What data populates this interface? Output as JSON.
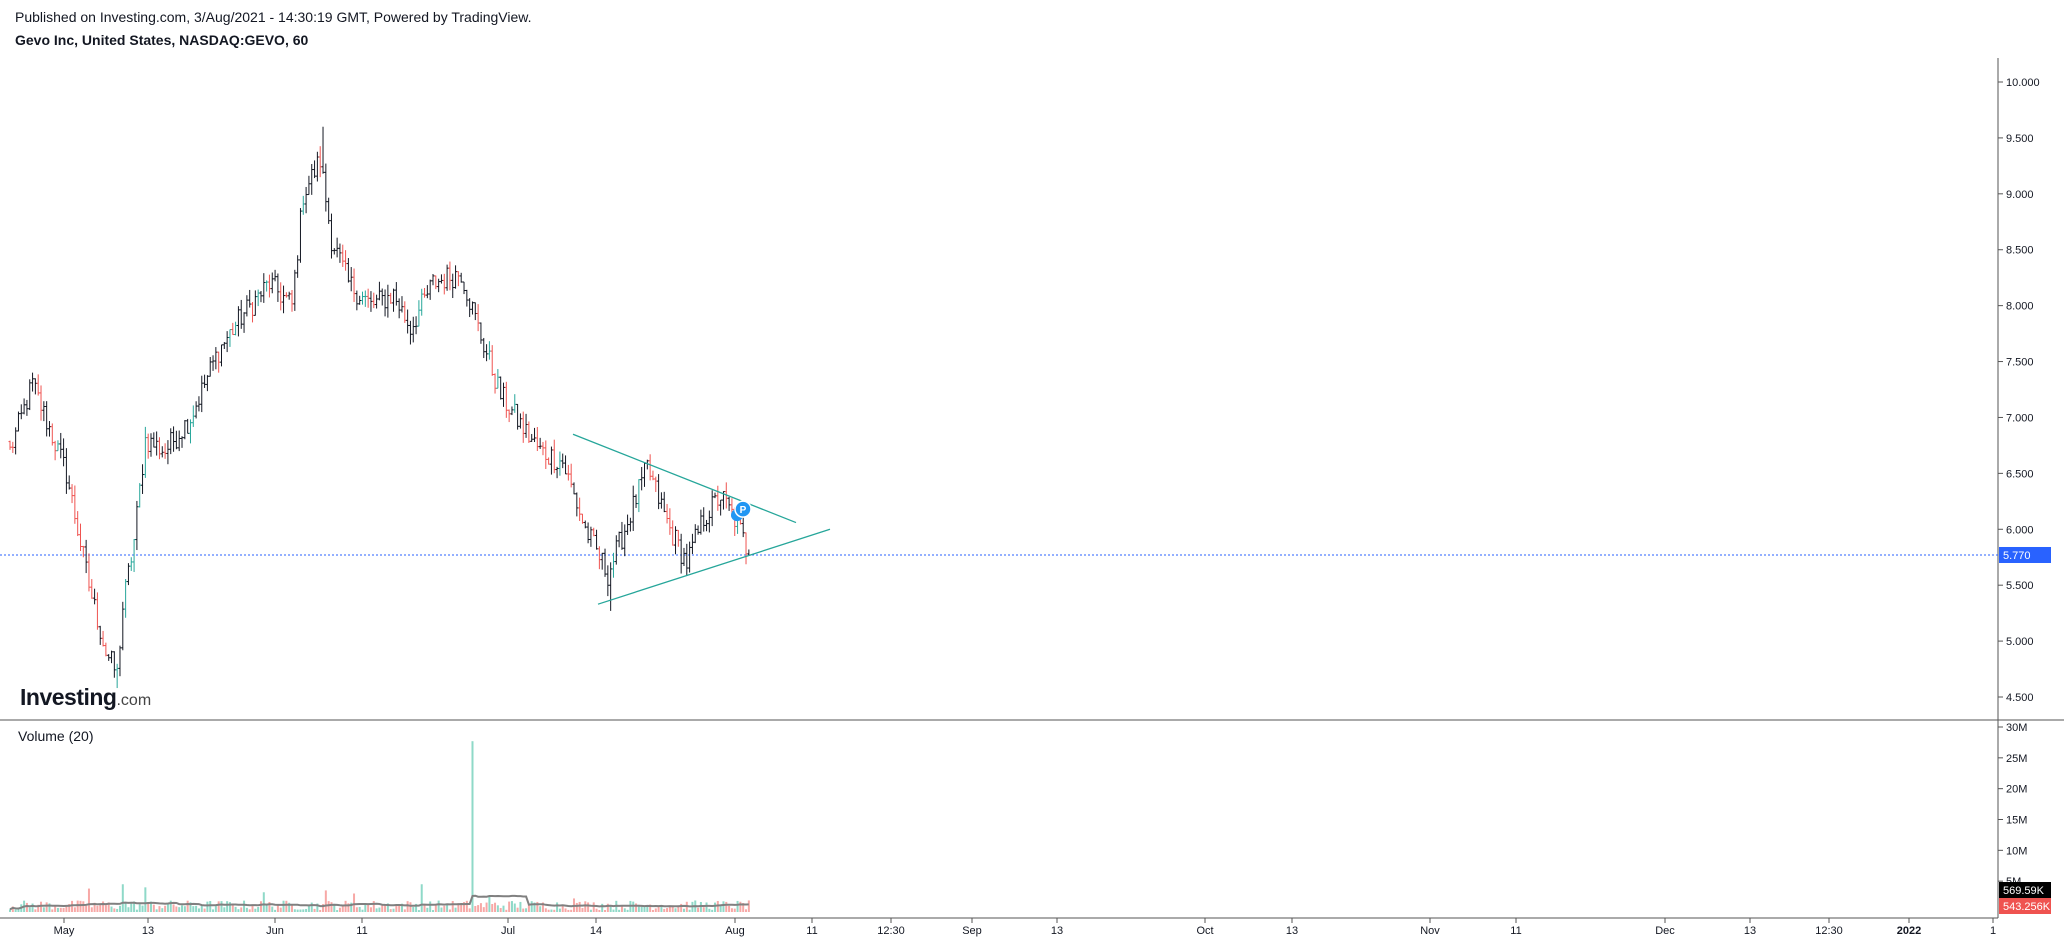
{
  "header": {
    "published": "Published on Investing.com, 3/Aug/2021 - 14:30:19 GMT, Powered by TradingView.",
    "title": "Gevo Inc, United States, NASDAQ:GEVO, 60"
  },
  "logo": {
    "brand": "Investing",
    "suffix": ".com"
  },
  "volume_label": "Volume (20)",
  "colors": {
    "up": "#26a69a",
    "down": "#ef5350",
    "bar_dark": "#131722",
    "trendline": "#26a69a",
    "last_price_tag": "#2962ff",
    "vol_tag_dark": "#000000",
    "vol_tag_red": "#ef5350",
    "ma": "#808080"
  },
  "chart_data": [
    {
      "type": "bar",
      "name": "price",
      "symbol": "NASDAQ:GEVO",
      "interval": "60",
      "ylim": [
        4.4,
        10.2
      ],
      "y_ticks": [
        "10.000",
        "9.500",
        "9.000",
        "8.500",
        "8.000",
        "7.500",
        "7.000",
        "6.500",
        "6.000",
        "5.500",
        "5.000",
        "4.500"
      ],
      "x_ticks": [
        "May",
        "13",
        "Jun",
        "11",
        "Jul",
        "14",
        "Aug",
        "11",
        "12:30",
        "Sep",
        "13",
        "Oct",
        "13",
        "Nov",
        "11",
        "Dec",
        "13",
        "12:30",
        "2022",
        "1"
      ],
      "last_price": "5.770",
      "anchors": [
        [
          0,
          6.7
        ],
        [
          8,
          7.3
        ],
        [
          20,
          6.5
        ],
        [
          28,
          5.5
        ],
        [
          34,
          4.9
        ],
        [
          38,
          4.7
        ],
        [
          40,
          5.3
        ],
        [
          44,
          5.9
        ],
        [
          48,
          6.8
        ],
        [
          55,
          6.7
        ],
        [
          64,
          7.0
        ],
        [
          74,
          7.6
        ],
        [
          82,
          7.9
        ],
        [
          92,
          8.2
        ],
        [
          100,
          8.0
        ],
        [
          104,
          9.0
        ],
        [
          110,
          9.3
        ],
        [
          114,
          8.6
        ],
        [
          120,
          8.2
        ],
        [
          128,
          8.0
        ],
        [
          136,
          8.1
        ],
        [
          142,
          7.8
        ],
        [
          150,
          8.2
        ],
        [
          160,
          8.3
        ],
        [
          166,
          7.8
        ],
        [
          174,
          7.2
        ],
        [
          182,
          6.9
        ],
        [
          188,
          6.7
        ],
        [
          196,
          6.6
        ],
        [
          204,
          6.0
        ],
        [
          212,
          5.6
        ],
        [
          218,
          6.0
        ],
        [
          226,
          6.55
        ],
        [
          234,
          6.0
        ],
        [
          240,
          5.7
        ],
        [
          246,
          6.1
        ],
        [
          252,
          6.3
        ],
        [
          258,
          6.05
        ],
        [
          262,
          5.77
        ]
      ],
      "trendlines": [
        {
          "points": [
            [
              "Jul 8",
              6.85
            ],
            [
              "Aug 10",
              6.06
            ]
          ]
        },
        {
          "points": [
            [
              "Jul 11",
              5.33
            ],
            [
              "Aug 14",
              6.0
            ]
          ]
        }
      ],
      "markers": [
        {
          "label": "P",
          "value": 6.18
        }
      ]
    },
    {
      "type": "bar",
      "name": "Volume (20)",
      "ylim": [
        0,
        30
      ],
      "y_ticks": [
        "30M",
        "25M",
        "20M",
        "15M",
        "10M",
        "5M"
      ],
      "last_values": [
        "569.59K",
        "543.256K"
      ],
      "spikes": [
        [
          28,
          3.8
        ],
        [
          40,
          4.5
        ],
        [
          48,
          4.0
        ],
        [
          90,
          3.2
        ],
        [
          112,
          3.5
        ],
        [
          122,
          3.0
        ],
        [
          146,
          4.5
        ],
        [
          164,
          27.7
        ],
        [
          170,
          2.5
        ],
        [
          200,
          2.2
        ]
      ]
    }
  ]
}
